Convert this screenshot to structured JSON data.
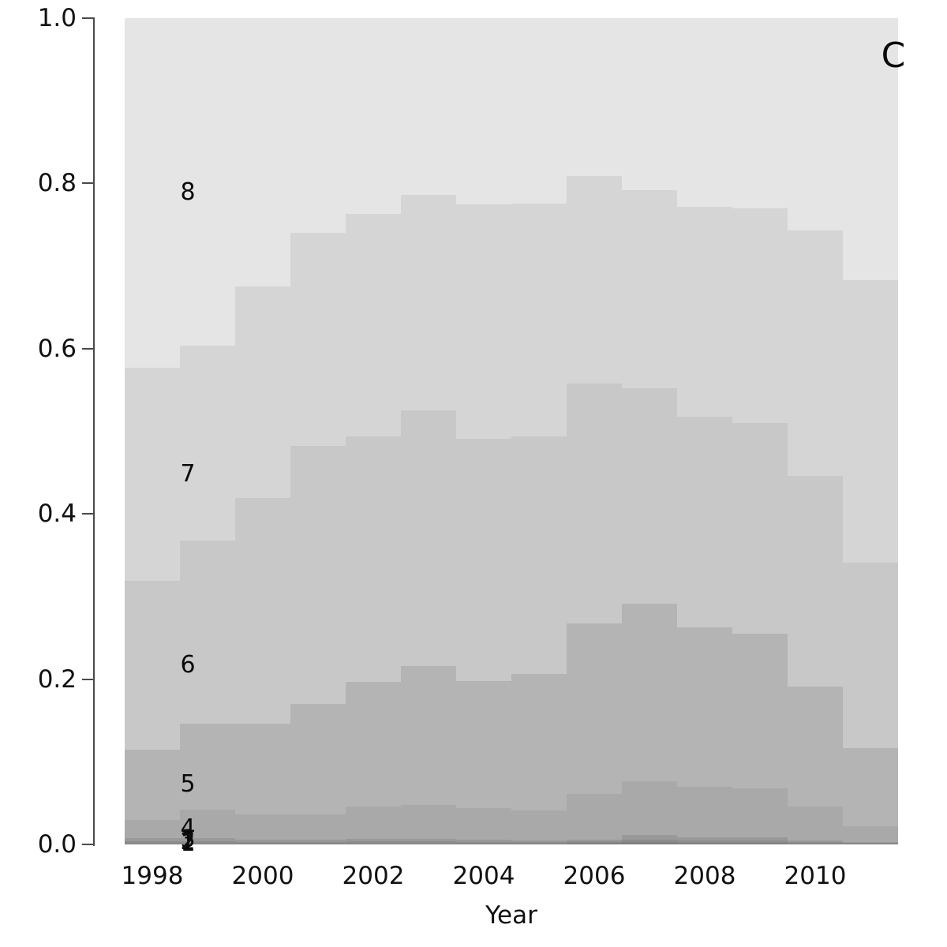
{
  "figure": {
    "panel_label": "C",
    "background": "#ffffff",
    "axis_color": "#4a4a4a",
    "text_color": "#111111"
  },
  "chart_data": {
    "type": "area",
    "subtype": "stacked-step-proportions",
    "title": "",
    "panel_label": "C",
    "xlabel": "Year",
    "ylabel": "",
    "ylim": [
      0.0,
      1.0
    ],
    "x_range": [
      1997.5,
      2011.5
    ],
    "grid": false,
    "legend_position": "inline-band-labels-left",
    "x": [
      1998,
      1999,
      2000,
      2001,
      2002,
      2003,
      2004,
      2005,
      2006,
      2007,
      2008,
      2009,
      2010,
      2011
    ],
    "xtick_labels": [
      "1998",
      "2000",
      "2002",
      "2004",
      "2006",
      "2008",
      "2010"
    ],
    "xtick_values": [
      1998,
      2000,
      2002,
      2004,
      2006,
      2008,
      2010
    ],
    "ytick_labels": [
      "0.0",
      "0.2",
      "0.4",
      "0.6",
      "0.8",
      "1.0"
    ],
    "ytick_values": [
      0.0,
      0.2,
      0.4,
      0.6,
      0.8,
      1.0
    ],
    "series": [
      {
        "name": "1",
        "color": "#7f7f7f",
        "values": [
          0.001,
          0.001,
          0.001,
          0.001,
          0.001,
          0.001,
          0.001,
          0.001,
          0.0015,
          0.0025,
          0.002,
          0.002,
          0.0012,
          0.0008
        ]
      },
      {
        "name": "2",
        "color": "#8c8c8c",
        "values": [
          0.003,
          0.003,
          0.002,
          0.002,
          0.0025,
          0.0025,
          0.002,
          0.0018,
          0.002,
          0.0035,
          0.0028,
          0.0028,
          0.0016,
          0.0007
        ]
      },
      {
        "name": "3",
        "color": "#999999",
        "values": [
          0.0036,
          0.0036,
          0.0027,
          0.0027,
          0.0032,
          0.0032,
          0.0027,
          0.002,
          0.0022,
          0.0055,
          0.0038,
          0.0038,
          0.002,
          0.001
        ]
      },
      {
        "name": "4",
        "color": "#a9a9a9",
        "values": [
          0.0224,
          0.0344,
          0.0303,
          0.0303,
          0.0393,
          0.0413,
          0.0383,
          0.0362,
          0.0553,
          0.0645,
          0.0614,
          0.0594,
          0.0412,
          0.0195
        ]
      },
      {
        "name": "5",
        "color": "#b4b4b4",
        "values": [
          0.085,
          0.104,
          0.11,
          0.134,
          0.151,
          0.168,
          0.154,
          0.165,
          0.206,
          0.215,
          0.193,
          0.187,
          0.145,
          0.095
        ]
      },
      {
        "name": "6",
        "color": "#c8c8c8",
        "values": [
          0.204,
          0.222,
          0.273,
          0.312,
          0.297,
          0.309,
          0.293,
          0.288,
          0.291,
          0.261,
          0.255,
          0.255,
          0.255,
          0.224
        ]
      },
      {
        "name": "7",
        "color": "#d5d5d5",
        "values": [
          0.258,
          0.236,
          0.256,
          0.258,
          0.269,
          0.261,
          0.284,
          0.282,
          0.251,
          0.24,
          0.254,
          0.26,
          0.297,
          0.342
        ]
      },
      {
        "name": "8",
        "color": "#e5e5e5",
        "values": [
          0.423,
          0.396,
          0.325,
          0.26,
          0.237,
          0.214,
          0.225,
          0.224,
          0.191,
          0.208,
          0.228,
          0.23,
          0.257,
          0.317
        ]
      }
    ]
  }
}
